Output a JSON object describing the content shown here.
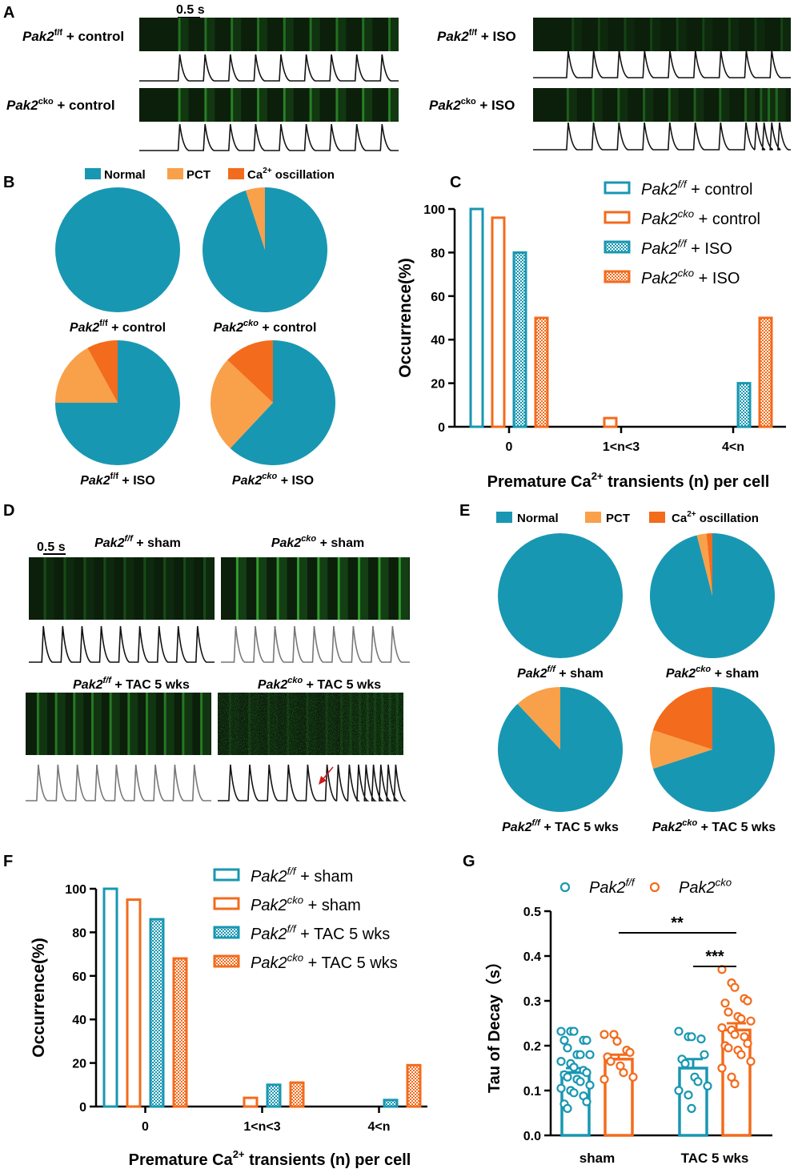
{
  "colors": {
    "teal": "#1897b2",
    "orange": "#f36b1c",
    "light_orange": "#f9a04a",
    "trace_black": "#111111",
    "trace_gray": "#777777",
    "arrow_red": "#d11a1a",
    "scan_dark": "#0b1f0b",
    "scan_green": "#41d13c"
  },
  "panels": {
    "A": {
      "letter": "A",
      "scale_bar": "0.5 s",
      "rows": [
        {
          "gene": "Pak2",
          "sup": "f/f",
          "cond": " + control"
        },
        {
          "gene": "Pak2",
          "sup": "cko",
          "cond": " + control"
        },
        {
          "gene": "Pak2",
          "sup": "f/f",
          "cond": " + ISO"
        },
        {
          "gene": "Pak2",
          "sup": "cko",
          "cond": " + ISO"
        }
      ]
    },
    "B": {
      "letter": "B",
      "legend": {
        "normal": "Normal",
        "pct": "PCT",
        "ca": "Ca",
        "ca_sup": "2+",
        "osc": " oscillation"
      },
      "pie_labels": [
        {
          "gene": "Pak2",
          "sup": "f/f",
          "cond": " + control"
        },
        {
          "gene": "Pak2",
          "sup": "cko",
          "cond": " + control"
        },
        {
          "gene": "Pak2",
          "sup": "f/f",
          "cond": " + ISO"
        },
        {
          "gene": "Pak2",
          "sup": "cko",
          "cond": " + ISO"
        }
      ]
    },
    "C": {
      "letter": "C"
    },
    "D": {
      "letter": "D",
      "scale_bar": "0.5 s",
      "labels": [
        {
          "gene": "Pak2",
          "sup": "f/f",
          "cond": " + sham"
        },
        {
          "gene": "Pak2",
          "sup": "cko",
          "cond": " + sham"
        },
        {
          "gene": "Pak2",
          "sup": "f/f",
          "cond": " + TAC 5 wks"
        },
        {
          "gene": "Pak2",
          "sup": "cko",
          "cond": " + TAC 5 wks"
        }
      ]
    },
    "E": {
      "letter": "E",
      "legend": {
        "normal": "Normal",
        "pct": "PCT",
        "ca": "Ca",
        "ca_sup": "2+",
        "osc": " oscillation"
      },
      "pie_labels": [
        {
          "gene": "Pak2",
          "sup": "f/f",
          "cond": " + sham"
        },
        {
          "gene": "Pak2",
          "sup": "cko",
          "cond": " + sham"
        },
        {
          "gene": "Pak2",
          "sup": "f/f",
          "cond": " + TAC 5 wks"
        },
        {
          "gene": "Pak2",
          "sup": "cko",
          "cond": " + TAC 5 wks"
        }
      ]
    },
    "F": {
      "letter": "F"
    },
    "G": {
      "letter": "G"
    }
  },
  "chart_data": [
    {
      "id": "B",
      "type": "pie",
      "categories": [
        "Normal",
        "PCT",
        "Ca2+ oscillation"
      ],
      "series": [
        {
          "values": [
            100,
            0,
            0
          ]
        },
        {
          "values": [
            95,
            5,
            0
          ]
        },
        {
          "values": [
            75,
            17,
            8
          ]
        },
        {
          "values": [
            62,
            25,
            13
          ]
        }
      ]
    },
    {
      "id": "C",
      "type": "bar",
      "categories": [
        "0",
        "1<n<3",
        "4<n"
      ],
      "ylabel": "Occurrence(%)",
      "xlabel_pre": "Premature Ca",
      "xlabel_sup": "2+",
      "xlabel_post": " transients (n) per cell",
      "ylim": [
        0,
        100
      ],
      "yticks": [
        "0",
        "20",
        "40",
        "60",
        "80",
        "100"
      ],
      "series": [
        {
          "name": "Pak2 f/f + control",
          "gene": "Pak2",
          "sup": "f/f",
          "cond": " + control",
          "values": [
            100,
            0,
            0
          ]
        },
        {
          "name": "Pak2 cko + control",
          "gene": "Pak2",
          "sup": "cko",
          "cond": " + control",
          "values": [
            96,
            4,
            0
          ]
        },
        {
          "name": "Pak2 f/f + ISO",
          "gene": "Pak2",
          "sup": "f/f",
          "cond": " + ISO",
          "values": [
            80,
            0,
            20
          ]
        },
        {
          "name": "Pak2 cko + ISO",
          "gene": "Pak2",
          "sup": "cko",
          "cond": " + ISO",
          "values": [
            50,
            0,
            50
          ]
        }
      ]
    },
    {
      "id": "E",
      "type": "pie",
      "categories": [
        "Normal",
        "PCT",
        "Ca2+ oscillation"
      ],
      "series": [
        {
          "values": [
            100,
            0,
            0
          ]
        },
        {
          "values": [
            96,
            2.5,
            1.5
          ]
        },
        {
          "values": [
            88,
            12,
            0
          ]
        },
        {
          "values": [
            70,
            10,
            20
          ]
        }
      ]
    },
    {
      "id": "F",
      "type": "bar",
      "categories": [
        "0",
        "1<n<3",
        "4<n"
      ],
      "ylabel": "Occurrence(%)",
      "xlabel_pre": "Premature Ca",
      "xlabel_sup": "2+",
      "xlabel_post": " transients (n) per cell",
      "ylim": [
        0,
        100
      ],
      "yticks": [
        "0",
        "20",
        "40",
        "60",
        "80",
        "100"
      ],
      "series": [
        {
          "name": "Pak2 f/f + sham",
          "gene": "Pak2",
          "sup": "f/f",
          "cond": " + sham",
          "values": [
            100,
            0,
            0
          ]
        },
        {
          "name": "Pak2 cko + sham",
          "gene": "Pak2",
          "sup": "cko",
          "cond": " + sham",
          "values": [
            95,
            4,
            0
          ]
        },
        {
          "name": "Pak2 f/f + TAC 5 wks",
          "gene": "Pak2",
          "sup": "f/f",
          "cond": " + TAC 5 wks",
          "values": [
            86,
            10,
            3
          ]
        },
        {
          "name": "Pak2 cko + TAC 5 wks",
          "gene": "Pak2",
          "sup": "cko",
          "cond": " + TAC 5 wks",
          "values": [
            68,
            11,
            19
          ]
        }
      ]
    },
    {
      "id": "G",
      "type": "scatter",
      "ylabel": "Tau of Decay（s）",
      "ylim": [
        0,
        0.5
      ],
      "yticks": [
        "0.0",
        "0.1",
        "0.2",
        "0.3",
        "0.4",
        "0.5"
      ],
      "categories": [
        "sham",
        "TAC 5 wks"
      ],
      "legend": [
        {
          "gene": "Pak2",
          "sup": "f/f"
        },
        {
          "gene": "Pak2",
          "sup": "cko"
        }
      ],
      "significance": [
        "**",
        "***"
      ],
      "groups": [
        {
          "name": "Pak2 f/f sham",
          "mean": 0.14,
          "sem": 0.01,
          "points": [
            0.232,
            0.232,
            0.232,
            0.212,
            0.212,
            0.212,
            0.195,
            0.18,
            0.18,
            0.18,
            0.165,
            0.16,
            0.152,
            0.145,
            0.14,
            0.135,
            0.13,
            0.125,
            0.12,
            0.112,
            0.105,
            0.1,
            0.095,
            0.088,
            0.075,
            0.07,
            0.06
          ]
        },
        {
          "name": "Pak2 cko sham",
          "mean": 0.17,
          "sem": 0.01,
          "points": [
            0.225,
            0.225,
            0.21,
            0.19,
            0.185,
            0.175,
            0.165,
            0.155,
            0.14,
            0.13,
            0.125
          ]
        },
        {
          "name": "Pak2 f/f TAC 5 wks",
          "mean": 0.15,
          "sem": 0.02,
          "points": [
            0.232,
            0.22,
            0.22,
            0.215,
            0.18,
            0.17,
            0.16,
            0.13,
            0.12,
            0.11,
            0.1,
            0.09,
            0.06
          ]
        },
        {
          "name": "Pak2 cko TAC 5 wks",
          "mean": 0.235,
          "sem": 0.015,
          "points": [
            0.37,
            0.34,
            0.33,
            0.305,
            0.3,
            0.295,
            0.275,
            0.265,
            0.26,
            0.255,
            0.24,
            0.235,
            0.225,
            0.22,
            0.205,
            0.2,
            0.195,
            0.19,
            0.18,
            0.165,
            0.15,
            0.13,
            0.115
          ]
        }
      ]
    }
  ]
}
